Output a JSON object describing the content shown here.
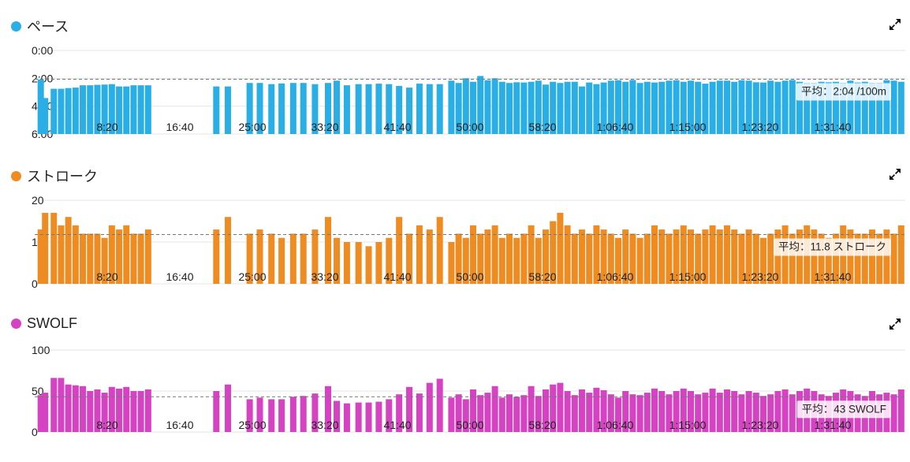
{
  "colors": {
    "pace": "#2aaee6",
    "stroke": "#ee8c22",
    "swolf": "#d542c2"
  },
  "icons": {
    "expand": "expand-icon"
  },
  "charts": [
    {
      "key": "pace",
      "title": "ペース",
      "avg_label": "平均：2:04 /100m",
      "yticks": [
        "0:00",
        "2:00",
        "4:00",
        "6:00"
      ]
    },
    {
      "key": "stroke",
      "title": "ストローク",
      "avg_label": "平均：11.8 ストローク",
      "yticks": [
        "20",
        "10",
        "0"
      ]
    },
    {
      "key": "swolf",
      "title": "SWOLF",
      "avg_label": "平均：43 SWOLF",
      "yticks": [
        "100",
        "50",
        "0"
      ]
    }
  ],
  "chart_data": [
    {
      "type": "bar",
      "title": "ペース",
      "x_tick_labels": [
        "8:20",
        "16:40",
        "25:00",
        "33:20",
        "41:40",
        "50:00",
        "58:20",
        "1:06:40",
        "1:15:00",
        "1:23:20",
        "1:31:40"
      ],
      "y_tick_labels": [
        "0:00",
        "2:00",
        "4:00",
        "6:00"
      ],
      "ylim": [
        0,
        360
      ],
      "y_inverted": true,
      "grid": true,
      "average": 124,
      "average_label": "平均：2:04 /100m",
      "x": [
        "0:20",
        "0:50",
        "1:50",
        "2:40",
        "3:30",
        "4:20",
        "5:10",
        "6:00",
        "6:50",
        "7:40",
        "8:30",
        "9:20",
        "10:10",
        "11:00",
        "11:50",
        "12:40",
        "20:30",
        "21:50",
        "24:20",
        "25:30",
        "26:50",
        "28:00",
        "29:20",
        "30:30",
        "31:50",
        "33:20",
        "34:20",
        "35:30",
        "36:50",
        "38:00",
        "39:10",
        "40:20",
        "41:30",
        "42:40",
        "43:50",
        "45:00",
        "46:10",
        "47:30",
        "48:20",
        "49:10",
        "50:00",
        "50:50",
        "51:40",
        "52:30",
        "53:20",
        "54:10",
        "55:00",
        "55:50",
        "56:40",
        "57:30",
        "58:20",
        "59:10",
        "60:00",
        "60:50",
        "61:40",
        "62:30",
        "63:20",
        "64:10",
        "65:00",
        "65:50",
        "66:40",
        "67:30",
        "68:20",
        "69:10",
        "70:00",
        "70:50",
        "71:40",
        "72:30",
        "73:20",
        "74:10",
        "75:00",
        "75:50",
        "76:40",
        "77:30",
        "78:20",
        "79:10",
        "80:00",
        "80:50",
        "81:40",
        "82:30",
        "83:20",
        "84:10",
        "85:00",
        "85:50",
        "86:40",
        "87:30",
        "88:20",
        "89:10",
        "90:00",
        "90:50",
        "91:40",
        "92:30",
        "93:20",
        "94:10",
        "95:00",
        "95:50",
        "96:40",
        "97:30",
        "98:20",
        "99:10"
      ],
      "values": [
        125,
        205,
        165,
        165,
        162,
        160,
        150,
        150,
        148,
        147,
        145,
        155,
        155,
        150,
        150,
        150,
        155,
        155,
        140,
        140,
        145,
        142,
        140,
        140,
        145,
        140,
        130,
        150,
        145,
        145,
        143,
        145,
        153,
        160,
        143,
        145,
        145,
        130,
        140,
        120,
        135,
        110,
        128,
        120,
        135,
        140,
        137,
        138,
        135,
        130,
        147,
        135,
        140,
        135,
        135,
        155,
        138,
        145,
        138,
        130,
        128,
        135,
        127,
        140,
        135,
        138,
        135,
        130,
        128,
        135,
        130,
        135,
        143,
        135,
        130,
        130,
        135,
        128,
        130,
        137,
        138,
        130,
        135,
        130,
        127,
        135,
        140,
        140,
        135,
        137,
        135,
        140,
        130,
        138,
        135,
        140,
        140,
        128,
        130,
        135
      ]
    },
    {
      "type": "bar",
      "title": "ストローク",
      "x_tick_labels": [
        "8:20",
        "16:40",
        "25:00",
        "33:20",
        "41:40",
        "50:00",
        "58:20",
        "1:06:40",
        "1:15:00",
        "1:23:20",
        "1:31:40"
      ],
      "y_tick_labels": [
        "20",
        "10",
        "0"
      ],
      "ylim": [
        0,
        20
      ],
      "grid": true,
      "average": 11.8,
      "average_label": "平均：11.8 ストローク",
      "x": [
        "0:20",
        "0:50",
        "1:50",
        "2:40",
        "3:30",
        "4:20",
        "5:10",
        "6:00",
        "6:50",
        "7:40",
        "8:30",
        "9:20",
        "10:10",
        "11:00",
        "11:50",
        "12:40",
        "20:30",
        "21:50",
        "24:20",
        "25:30",
        "26:50",
        "28:00",
        "29:20",
        "30:30",
        "31:50",
        "33:20",
        "34:20",
        "35:30",
        "36:50",
        "38:00",
        "39:10",
        "40:20",
        "41:30",
        "42:40",
        "43:50",
        "45:00",
        "46:10",
        "47:30",
        "48:20",
        "49:10",
        "50:00",
        "50:50",
        "51:40",
        "52:30",
        "53:20",
        "54:10",
        "55:00",
        "55:50",
        "56:40",
        "57:30",
        "58:20",
        "59:10",
        "60:00",
        "60:50",
        "61:40",
        "62:30",
        "63:20",
        "64:10",
        "65:00",
        "65:50",
        "66:40",
        "67:30",
        "68:20",
        "69:10",
        "70:00",
        "70:50",
        "71:40",
        "72:30",
        "73:20",
        "74:10",
        "75:00",
        "75:50",
        "76:40",
        "77:30",
        "78:20",
        "79:10",
        "80:00",
        "80:50",
        "81:40",
        "82:30",
        "83:20",
        "84:10",
        "85:00",
        "85:50",
        "86:40",
        "87:30",
        "88:20",
        "89:10",
        "90:00",
        "90:50",
        "91:40",
        "92:30",
        "93:20",
        "94:10",
        "95:00",
        "95:50",
        "96:40",
        "97:30",
        "98:20",
        "99:10"
      ],
      "values": [
        13,
        17,
        17,
        14,
        16,
        14,
        12,
        12,
        12,
        11,
        14,
        13,
        14,
        12,
        12,
        13,
        13,
        16,
        12,
        13,
        12,
        11,
        12,
        12,
        13,
        16,
        11,
        10,
        10,
        9,
        10,
        11,
        16,
        12,
        14,
        13,
        16,
        10,
        12,
        11,
        14,
        12,
        13,
        14,
        11,
        12,
        11,
        12,
        14,
        11,
        13,
        15,
        17,
        14,
        12,
        13,
        12,
        14,
        13,
        12,
        11,
        13,
        12,
        11,
        12,
        14,
        13,
        12,
        13,
        14,
        13,
        12,
        13,
        14,
        13,
        14,
        13,
        12,
        13,
        12,
        11,
        12,
        13,
        14,
        12,
        13,
        14,
        13,
        12,
        11,
        12,
        14,
        13,
        12,
        12,
        13,
        12,
        13,
        12,
        14
      ]
    },
    {
      "type": "bar",
      "title": "SWOLF",
      "x_tick_labels": [
        "8:20",
        "16:40",
        "25:00",
        "33:20",
        "41:40",
        "50:00",
        "58:20",
        "1:06:40",
        "1:15:00",
        "1:23:20",
        "1:31:40"
      ],
      "y_tick_labels": [
        "100",
        "50",
        "0"
      ],
      "ylim": [
        0,
        100
      ],
      "grid": true,
      "average": 43,
      "average_label": "平均：43 SWOLF",
      "x": [
        "0:20",
        "0:50",
        "1:50",
        "2:40",
        "3:30",
        "4:20",
        "5:10",
        "6:00",
        "6:50",
        "7:40",
        "8:30",
        "9:20",
        "10:10",
        "11:00",
        "11:50",
        "12:40",
        "20:30",
        "21:50",
        "24:20",
        "25:30",
        "26:50",
        "28:00",
        "29:20",
        "30:30",
        "31:50",
        "33:20",
        "34:20",
        "35:30",
        "36:50",
        "38:00",
        "39:10",
        "40:20",
        "41:30",
        "42:40",
        "43:50",
        "45:00",
        "46:10",
        "47:30",
        "48:20",
        "49:10",
        "50:00",
        "50:50",
        "51:40",
        "52:30",
        "53:20",
        "54:10",
        "55:00",
        "55:50",
        "56:40",
        "57:30",
        "58:20",
        "59:10",
        "60:00",
        "60:50",
        "61:40",
        "62:30",
        "63:20",
        "64:10",
        "65:00",
        "65:50",
        "66:40",
        "67:30",
        "68:20",
        "69:10",
        "70:00",
        "70:50",
        "71:40",
        "72:30",
        "73:20",
        "74:10",
        "75:00",
        "75:50",
        "76:40",
        "77:30",
        "78:20",
        "79:10",
        "80:00",
        "80:50",
        "81:40",
        "82:30",
        "83:20",
        "84:10",
        "85:00",
        "85:50",
        "86:40",
        "87:30",
        "88:20",
        "89:10",
        "90:00",
        "90:50",
        "91:40",
        "92:30",
        "93:20",
        "94:10",
        "95:00",
        "95:50",
        "96:40",
        "97:30",
        "98:20",
        "99:10"
      ],
      "values": [
        45,
        48,
        66,
        66,
        58,
        57,
        56,
        50,
        52,
        48,
        55,
        53,
        55,
        50,
        50,
        52,
        50,
        58,
        40,
        42,
        40,
        40,
        43,
        44,
        47,
        56,
        38,
        35,
        36,
        36,
        37,
        40,
        46,
        55,
        47,
        60,
        65,
        42,
        46,
        40,
        52,
        45,
        48,
        56,
        42,
        46,
        43,
        45,
        56,
        44,
        52,
        58,
        60,
        50,
        45,
        52,
        48,
        54,
        51,
        46,
        42,
        50,
        46,
        45,
        48,
        53,
        50,
        46,
        50,
        53,
        50,
        46,
        48,
        53,
        48,
        52,
        50,
        46,
        50,
        48,
        44,
        46,
        50,
        52,
        46,
        50,
        53,
        50,
        46,
        44,
        48,
        52,
        50,
        46,
        44,
        50,
        46,
        48,
        46,
        52
      ]
    }
  ]
}
